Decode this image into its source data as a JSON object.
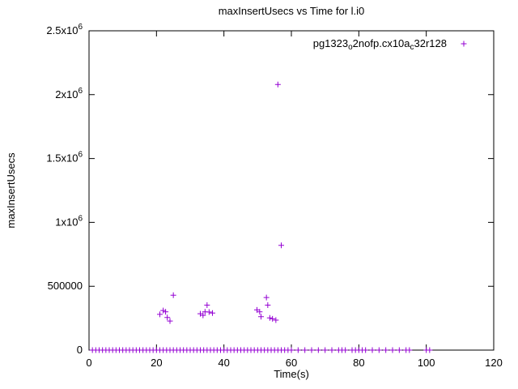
{
  "chart_data": {
    "type": "scatter",
    "title": "maxInsertUsecs vs Time for l.i0",
    "xlabel": "Time(s)",
    "ylabel": "maxInsertUsecs",
    "xlim": [
      0,
      120
    ],
    "ylim": [
      0,
      2500000
    ],
    "grid": false,
    "legend_position": "top-right-inside",
    "xticks": [
      {
        "v": 0,
        "label": "0"
      },
      {
        "v": 20,
        "label": "20"
      },
      {
        "v": 40,
        "label": "40"
      },
      {
        "v": 60,
        "label": "60"
      },
      {
        "v": 80,
        "label": "80"
      },
      {
        "v": 100,
        "label": "100"
      },
      {
        "v": 120,
        "label": "120"
      }
    ],
    "yticks": [
      {
        "v": 0,
        "base": "0",
        "exp": ""
      },
      {
        "v": 500000,
        "base": "500000",
        "exp": ""
      },
      {
        "v": 1000000,
        "base": "1x10",
        "exp": "6"
      },
      {
        "v": 1500000,
        "base": "1.5x10",
        "exp": "6"
      },
      {
        "v": 2000000,
        "base": "2x10",
        "exp": "6"
      },
      {
        "v": 2500000,
        "base": "2.5x10",
        "exp": "6"
      }
    ],
    "series": [
      {
        "name": "pg1323_o2nofp.cx10a_c32r128",
        "name_parts": [
          {
            "t": "pg1323"
          },
          {
            "t": "o",
            "sub": true
          },
          {
            "t": "2nofp.cx10a"
          },
          {
            "t": "c",
            "sub": true
          },
          {
            "t": "32r128"
          }
        ],
        "color": "#9400d3",
        "marker": "plus",
        "points": [
          [
            21,
            280000
          ],
          [
            22,
            310000
          ],
          [
            22.7,
            300000
          ],
          [
            23.2,
            255000
          ],
          [
            24,
            228000
          ],
          [
            25,
            430000
          ],
          [
            33,
            285000
          ],
          [
            33.8,
            272000
          ],
          [
            34.4,
            300000
          ],
          [
            35,
            352000
          ],
          [
            35.6,
            298000
          ],
          [
            36.6,
            290000
          ],
          [
            49.8,
            315000
          ],
          [
            50.6,
            300000
          ],
          [
            51,
            262000
          ],
          [
            52.6,
            412000
          ],
          [
            53,
            352000
          ],
          [
            53.6,
            252000
          ],
          [
            54.4,
            245000
          ],
          [
            55.4,
            235000
          ],
          [
            56,
            2080000
          ],
          [
            57,
            820000
          ]
        ],
        "baseline_y": 0,
        "baseline_x": [
          1,
          2,
          3,
          4,
          5,
          6,
          7,
          8,
          9,
          10,
          11,
          12,
          13,
          14,
          15,
          16,
          17,
          18,
          19,
          20,
          21,
          22,
          23,
          24,
          25,
          26,
          27,
          28,
          29,
          30,
          31,
          32,
          33,
          34,
          35,
          36,
          37,
          38,
          39,
          40,
          41,
          42,
          43,
          44,
          45,
          46,
          47,
          48,
          49,
          50,
          51,
          52,
          53,
          54,
          55,
          56,
          57,
          58,
          59,
          60,
          62,
          64,
          66,
          68,
          70,
          72,
          74,
          75,
          76,
          78,
          79,
          80,
          81,
          82,
          84,
          86,
          88,
          90,
          92,
          94,
          95,
          100,
          101
        ]
      }
    ],
    "colors": {
      "axis": "#000000",
      "text": "#000000",
      "background": "#ffffff",
      "series1": "#9400d3"
    }
  }
}
